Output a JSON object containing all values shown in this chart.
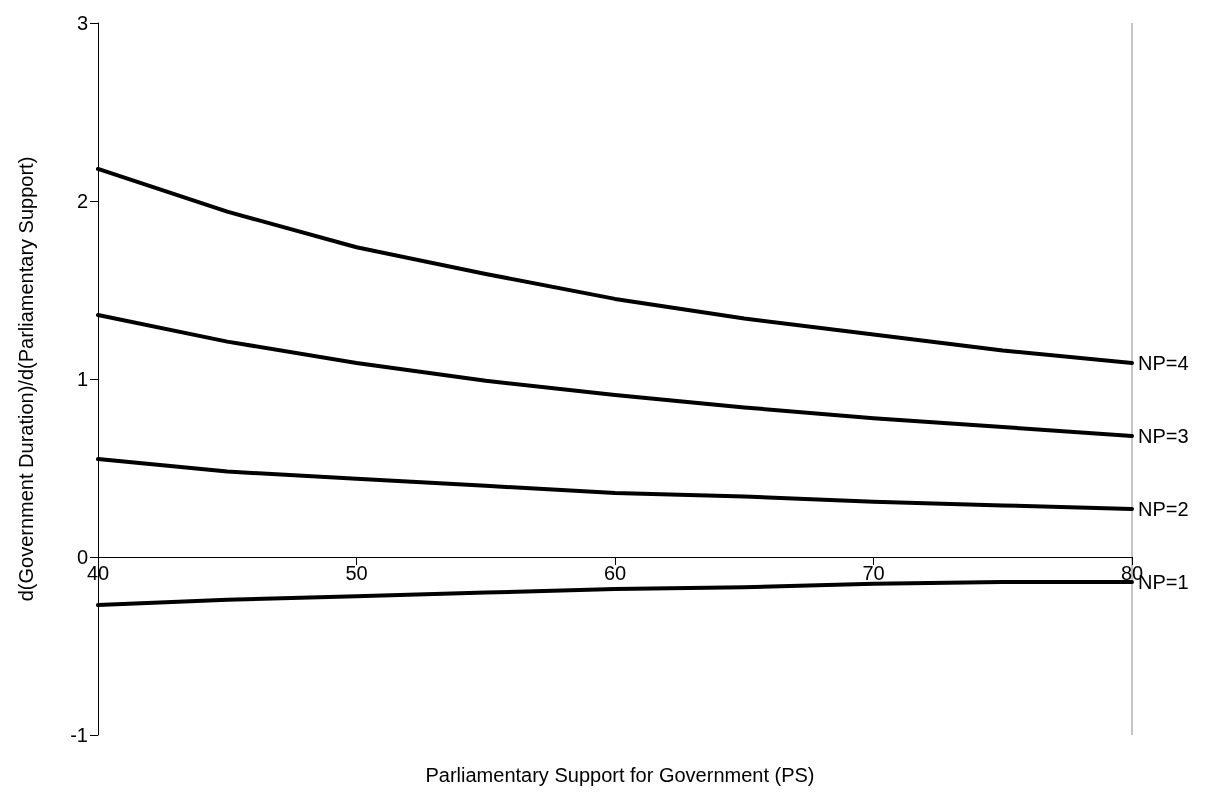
{
  "chart_data": {
    "type": "line",
    "xlabel": "Parliamentary Support for Government (PS)",
    "ylabel": "d(Government Duration)/d(Parliamentary Support)",
    "x": [
      40,
      45,
      50,
      55,
      60,
      65,
      70,
      75,
      80
    ],
    "series": [
      {
        "name": "NP=4",
        "color": "#000000",
        "values": [
          2.18,
          1.94,
          1.74,
          1.59,
          1.45,
          1.34,
          1.25,
          1.16,
          1.09
        ]
      },
      {
        "name": "NP=3",
        "color": "#000000",
        "values": [
          1.36,
          1.21,
          1.09,
          0.99,
          0.91,
          0.84,
          0.78,
          0.73,
          0.68
        ]
      },
      {
        "name": "NP=2",
        "color": "#000000",
        "values": [
          0.55,
          0.48,
          0.44,
          0.4,
          0.36,
          0.34,
          0.31,
          0.29,
          0.27
        ]
      },
      {
        "name": "NP=1",
        "color": "#000000",
        "values": [
          -0.27,
          -0.24,
          -0.22,
          -0.2,
          -0.18,
          -0.17,
          -0.15,
          -0.14,
          -0.14
        ]
      }
    ],
    "xlim": [
      40,
      80
    ],
    "xticks": [
      40,
      50,
      60,
      70,
      80
    ],
    "ylim": [
      -1,
      3
    ],
    "yticks": [
      -1,
      0,
      1,
      2,
      3
    ],
    "grid": false,
    "legend": false,
    "marker": "none",
    "line_style": "solid"
  }
}
